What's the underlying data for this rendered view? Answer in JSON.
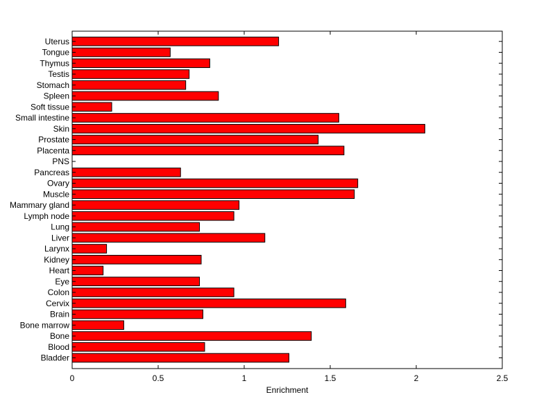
{
  "chart_data": {
    "type": "bar",
    "orientation": "horizontal",
    "title": "",
    "xlabel": "Enrichment",
    "ylabel": "",
    "xlim": [
      0,
      2.5
    ],
    "xticks": [
      "0",
      "0.5",
      "1",
      "1.5",
      "2",
      "2.5"
    ],
    "grid": false,
    "bar_color": "#ff0000",
    "edge_color": "#000000",
    "categories": [
      "Bladder",
      "Blood",
      "Bone",
      "Bone marrow",
      "Brain",
      "Cervix",
      "Colon",
      "Eye",
      "Heart",
      "Kidney",
      "Larynx",
      "Liver",
      "Lung",
      "Lymph node",
      "Mammary gland",
      "Muscle",
      "Ovary",
      "Pancreas",
      "PNS",
      "Placenta",
      "Prostate",
      "Skin",
      "Small intestine",
      "Soft tissue",
      "Spleen",
      "Stomach",
      "Testis",
      "Thymus",
      "Tongue",
      "Uterus"
    ],
    "values": [
      1.26,
      0.77,
      1.39,
      0.3,
      0.76,
      1.59,
      0.94,
      0.74,
      0.18,
      0.75,
      0.2,
      1.12,
      0.74,
      0.94,
      0.97,
      1.64,
      1.66,
      0.63,
      0.0,
      1.58,
      1.43,
      2.05,
      1.55,
      0.23,
      0.85,
      0.66,
      0.68,
      0.8,
      0.57,
      1.2
    ]
  }
}
